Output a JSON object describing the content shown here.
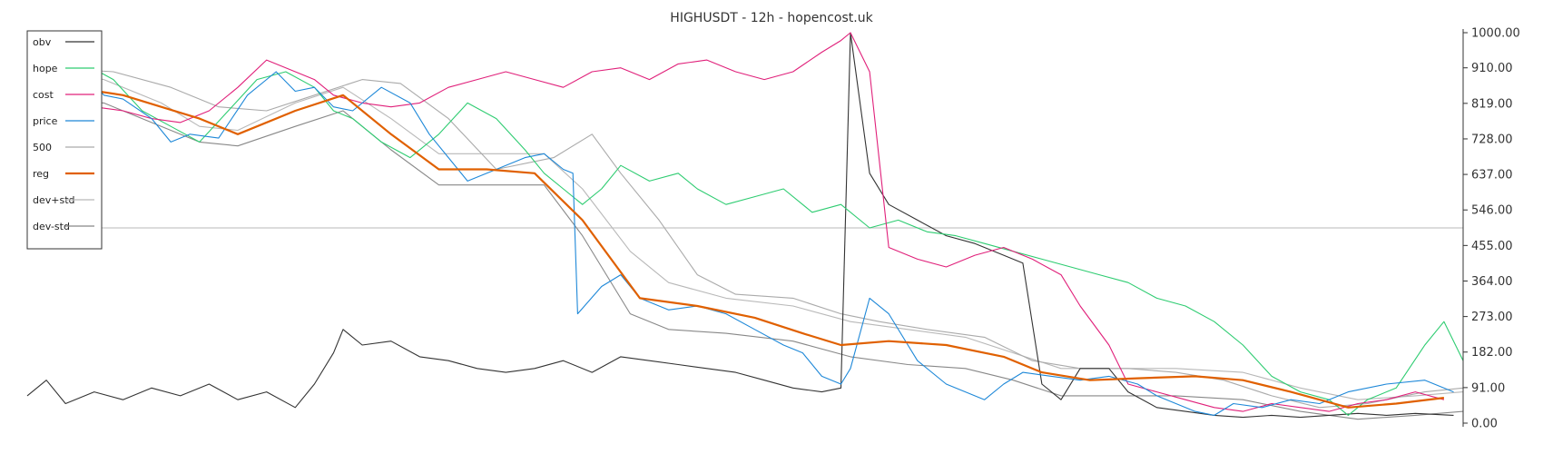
{
  "chart_data": {
    "type": "line",
    "title": "HIGHUSDT - 12h - hopencost.uk",
    "y_axis": {
      "position": "right",
      "ylim": [
        0,
        1000
      ],
      "ticks": [
        "1000.00",
        "910.00",
        "819.00",
        "728.00",
        "637.00",
        "546.00",
        "455.00",
        "364.00",
        "273.00",
        "182.00",
        "91.00",
        "0.00"
      ],
      "tick_values": [
        1000,
        910,
        819,
        728,
        637,
        546,
        455,
        364,
        273,
        182,
        91,
        0
      ]
    },
    "x_points": 200,
    "reference_line": 500,
    "legend": {
      "position": "top-left",
      "items": [
        {
          "key": "obv",
          "label": "obv",
          "color": "#333333"
        },
        {
          "key": "hope",
          "label": "hope",
          "color": "#2ecc71"
        },
        {
          "key": "cost",
          "label": "cost",
          "color": "#e0207a"
        },
        {
          "key": "price",
          "label": "price",
          "color": "#1e88d8"
        },
        {
          "key": "p500",
          "label": "500",
          "color": "#aaaaaa"
        },
        {
          "key": "reg",
          "label": "reg",
          "color": "#e06000"
        },
        {
          "key": "devp",
          "label": "dev+std",
          "color": "#b8b8b8"
        },
        {
          "key": "devm",
          "label": "dev-std",
          "color": "#888888"
        }
      ]
    },
    "series": {
      "price": [
        [
          0,
          820
        ],
        [
          5,
          800
        ],
        [
          8,
          860
        ],
        [
          12,
          900
        ],
        [
          16,
          840
        ],
        [
          20,
          830
        ],
        [
          26,
          780
        ],
        [
          30,
          720
        ],
        [
          34,
          740
        ],
        [
          40,
          730
        ],
        [
          46,
          840
        ],
        [
          52,
          900
        ],
        [
          56,
          850
        ],
        [
          60,
          860
        ],
        [
          64,
          810
        ],
        [
          68,
          800
        ],
        [
          74,
          860
        ],
        [
          80,
          820
        ],
        [
          84,
          740
        ],
        [
          88,
          680
        ],
        [
          92,
          620
        ],
        [
          98,
          650
        ],
        [
          104,
          680
        ],
        [
          108,
          690
        ],
        [
          112,
          650
        ],
        [
          114,
          640
        ],
        [
          115,
          280
        ],
        [
          120,
          350
        ],
        [
          124,
          380
        ],
        [
          128,
          320
        ],
        [
          134,
          290
        ],
        [
          140,
          300
        ],
        [
          146,
          280
        ],
        [
          152,
          240
        ],
        [
          158,
          200
        ],
        [
          162,
          180
        ],
        [
          166,
          120
        ],
        [
          170,
          100
        ],
        [
          172,
          140
        ],
        [
          176,
          320
        ],
        [
          180,
          280
        ],
        [
          186,
          160
        ],
        [
          192,
          100
        ],
        [
          196,
          80
        ],
        [
          200,
          60
        ],
        [
          204,
          100
        ],
        [
          208,
          130
        ],
        [
          214,
          120
        ],
        [
          220,
          110
        ],
        [
          226,
          120
        ],
        [
          232,
          100
        ],
        [
          236,
          70
        ],
        [
          240,
          50
        ],
        [
          244,
          30
        ],
        [
          248,
          20
        ],
        [
          252,
          50
        ],
        [
          258,
          40
        ],
        [
          264,
          60
        ],
        [
          270,
          50
        ],
        [
          276,
          80
        ],
        [
          284,
          100
        ],
        [
          292,
          110
        ],
        [
          298,
          80
        ]
      ],
      "hope": [
        [
          0,
          900
        ],
        [
          3,
          960
        ],
        [
          6,
          860
        ],
        [
          12,
          920
        ],
        [
          18,
          880
        ],
        [
          24,
          800
        ],
        [
          30,
          760
        ],
        [
          36,
          720
        ],
        [
          42,
          800
        ],
        [
          48,
          880
        ],
        [
          54,
          900
        ],
        [
          60,
          860
        ],
        [
          64,
          800
        ],
        [
          68,
          780
        ],
        [
          74,
          720
        ],
        [
          80,
          680
        ],
        [
          86,
          740
        ],
        [
          92,
          820
        ],
        [
          98,
          780
        ],
        [
          104,
          700
        ],
        [
          108,
          640
        ],
        [
          112,
          600
        ],
        [
          116,
          560
        ],
        [
          120,
          600
        ],
        [
          124,
          660
        ],
        [
          130,
          620
        ],
        [
          136,
          640
        ],
        [
          140,
          600
        ],
        [
          146,
          560
        ],
        [
          152,
          580
        ],
        [
          158,
          600
        ],
        [
          164,
          540
        ],
        [
          170,
          560
        ],
        [
          176,
          500
        ],
        [
          182,
          520
        ],
        [
          188,
          490
        ],
        [
          194,
          480
        ],
        [
          200,
          460
        ],
        [
          206,
          440
        ],
        [
          212,
          420
        ],
        [
          218,
          400
        ],
        [
          224,
          380
        ],
        [
          230,
          360
        ],
        [
          236,
          320
        ],
        [
          242,
          300
        ],
        [
          248,
          260
        ],
        [
          254,
          200
        ],
        [
          260,
          120
        ],
        [
          266,
          80
        ],
        [
          272,
          60
        ],
        [
          276,
          20
        ],
        [
          280,
          60
        ],
        [
          286,
          90
        ],
        [
          292,
          200
        ],
        [
          296,
          260
        ],
        [
          300,
          160
        ]
      ],
      "cost": [
        [
          0,
          840
        ],
        [
          4,
          830
        ],
        [
          8,
          820
        ],
        [
          14,
          810
        ],
        [
          20,
          800
        ],
        [
          26,
          780
        ],
        [
          32,
          770
        ],
        [
          38,
          800
        ],
        [
          44,
          860
        ],
        [
          50,
          930
        ],
        [
          56,
          900
        ],
        [
          60,
          880
        ],
        [
          64,
          840
        ],
        [
          70,
          820
        ],
        [
          76,
          810
        ],
        [
          82,
          820
        ],
        [
          88,
          860
        ],
        [
          94,
          880
        ],
        [
          100,
          900
        ],
        [
          106,
          880
        ],
        [
          112,
          860
        ],
        [
          118,
          900
        ],
        [
          124,
          910
        ],
        [
          130,
          880
        ],
        [
          136,
          920
        ],
        [
          142,
          930
        ],
        [
          148,
          900
        ],
        [
          154,
          880
        ],
        [
          160,
          900
        ],
        [
          166,
          950
        ],
        [
          170,
          980
        ],
        [
          172,
          1000
        ],
        [
          176,
          900
        ],
        [
          180,
          450
        ],
        [
          186,
          420
        ],
        [
          192,
          400
        ],
        [
          198,
          430
        ],
        [
          204,
          450
        ],
        [
          210,
          420
        ],
        [
          216,
          380
        ],
        [
          220,
          300
        ],
        [
          226,
          200
        ],
        [
          230,
          100
        ],
        [
          236,
          80
        ],
        [
          242,
          60
        ],
        [
          248,
          40
        ],
        [
          254,
          30
        ],
        [
          260,
          50
        ],
        [
          266,
          40
        ],
        [
          272,
          30
        ],
        [
          278,
          50
        ],
        [
          284,
          60
        ],
        [
          290,
          80
        ],
        [
          296,
          60
        ]
      ],
      "obv": [
        [
          0,
          70
        ],
        [
          4,
          110
        ],
        [
          8,
          50
        ],
        [
          14,
          80
        ],
        [
          20,
          60
        ],
        [
          26,
          90
        ],
        [
          32,
          70
        ],
        [
          38,
          100
        ],
        [
          44,
          60
        ],
        [
          50,
          80
        ],
        [
          56,
          40
        ],
        [
          60,
          100
        ],
        [
          64,
          180
        ],
        [
          66,
          240
        ],
        [
          70,
          200
        ],
        [
          76,
          210
        ],
        [
          82,
          170
        ],
        [
          88,
          160
        ],
        [
          94,
          140
        ],
        [
          100,
          130
        ],
        [
          106,
          140
        ],
        [
          112,
          160
        ],
        [
          118,
          130
        ],
        [
          124,
          170
        ],
        [
          130,
          160
        ],
        [
          136,
          150
        ],
        [
          142,
          140
        ],
        [
          148,
          130
        ],
        [
          154,
          110
        ],
        [
          160,
          90
        ],
        [
          166,
          80
        ],
        [
          170,
          90
        ],
        [
          172,
          1000
        ],
        [
          176,
          640
        ],
        [
          180,
          560
        ],
        [
          186,
          520
        ],
        [
          192,
          480
        ],
        [
          198,
          460
        ],
        [
          204,
          430
        ],
        [
          208,
          410
        ],
        [
          212,
          100
        ],
        [
          216,
          60
        ],
        [
          220,
          140
        ],
        [
          226,
          140
        ],
        [
          230,
          80
        ],
        [
          236,
          40
        ],
        [
          242,
          30
        ],
        [
          248,
          20
        ],
        [
          254,
          15
        ],
        [
          260,
          20
        ],
        [
          266,
          15
        ],
        [
          272,
          20
        ],
        [
          278,
          25
        ],
        [
          284,
          20
        ],
        [
          290,
          25
        ],
        [
          298,
          20
        ]
      ],
      "reg": [
        [
          4,
          870
        ],
        [
          20,
          840
        ],
        [
          36,
          780
        ],
        [
          44,
          740
        ],
        [
          56,
          800
        ],
        [
          66,
          840
        ],
        [
          76,
          740
        ],
        [
          86,
          650
        ],
        [
          96,
          650
        ],
        [
          106,
          640
        ],
        [
          116,
          520
        ],
        [
          128,
          320
        ],
        [
          140,
          300
        ],
        [
          152,
          270
        ],
        [
          162,
          230
        ],
        [
          170,
          200
        ],
        [
          180,
          210
        ],
        [
          192,
          200
        ],
        [
          204,
          170
        ],
        [
          212,
          130
        ],
        [
          222,
          110
        ],
        [
          232,
          115
        ],
        [
          244,
          120
        ],
        [
          254,
          110
        ],
        [
          264,
          80
        ],
        [
          276,
          40
        ],
        [
          286,
          50
        ],
        [
          296,
          65
        ]
      ],
      "p500": [
        [
          4,
          910
        ],
        [
          18,
          900
        ],
        [
          30,
          860
        ],
        [
          40,
          810
        ],
        [
          50,
          800
        ],
        [
          60,
          840
        ],
        [
          70,
          880
        ],
        [
          78,
          870
        ],
        [
          88,
          780
        ],
        [
          98,
          650
        ],
        [
          110,
          680
        ],
        [
          118,
          740
        ],
        [
          124,
          640
        ],
        [
          132,
          520
        ],
        [
          140,
          380
        ],
        [
          148,
          330
        ],
        [
          160,
          320
        ],
        [
          170,
          280
        ],
        [
          178,
          260
        ],
        [
          188,
          240
        ],
        [
          200,
          220
        ],
        [
          210,
          160
        ],
        [
          220,
          140
        ],
        [
          230,
          140
        ],
        [
          240,
          130
        ],
        [
          250,
          110
        ],
        [
          260,
          70
        ],
        [
          270,
          40
        ],
        [
          280,
          50
        ],
        [
          292,
          80
        ],
        [
          300,
          90
        ]
      ],
      "devp": [
        [
          4,
          900
        ],
        [
          16,
          880
        ],
        [
          28,
          820
        ],
        [
          36,
          760
        ],
        [
          44,
          750
        ],
        [
          56,
          820
        ],
        [
          66,
          860
        ],
        [
          76,
          780
        ],
        [
          86,
          690
        ],
        [
          96,
          690
        ],
        [
          108,
          690
        ],
        [
          116,
          600
        ],
        [
          126,
          440
        ],
        [
          134,
          360
        ],
        [
          146,
          320
        ],
        [
          160,
          300
        ],
        [
          172,
          260
        ],
        [
          184,
          240
        ],
        [
          196,
          220
        ],
        [
          206,
          180
        ],
        [
          216,
          140
        ],
        [
          228,
          140
        ],
        [
          240,
          140
        ],
        [
          254,
          130
        ],
        [
          266,
          90
        ],
        [
          278,
          60
        ],
        [
          290,
          70
        ],
        [
          300,
          80
        ]
      ],
      "devm": [
        [
          4,
          830
        ],
        [
          16,
          820
        ],
        [
          28,
          760
        ],
        [
          36,
          720
        ],
        [
          44,
          710
        ],
        [
          56,
          760
        ],
        [
          66,
          800
        ],
        [
          76,
          700
        ],
        [
          86,
          610
        ],
        [
          96,
          610
        ],
        [
          108,
          610
        ],
        [
          116,
          480
        ],
        [
          126,
          280
        ],
        [
          134,
          240
        ],
        [
          146,
          230
        ],
        [
          160,
          210
        ],
        [
          172,
          170
        ],
        [
          184,
          150
        ],
        [
          196,
          140
        ],
        [
          206,
          110
        ],
        [
          216,
          70
        ],
        [
          228,
          70
        ],
        [
          240,
          70
        ],
        [
          254,
          60
        ],
        [
          266,
          30
        ],
        [
          278,
          10
        ],
        [
          290,
          20
        ],
        [
          300,
          30
        ]
      ]
    }
  }
}
